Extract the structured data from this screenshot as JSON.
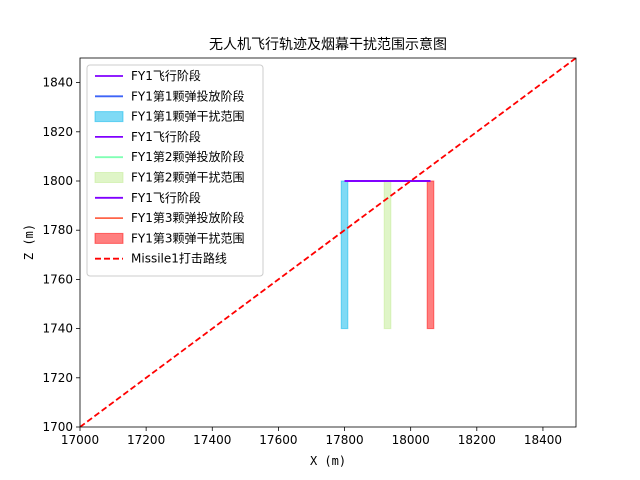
{
  "chart_data": {
    "type": "line",
    "title": "无人机飞行轨迹及烟幕干扰范围示意图",
    "xlabel": "X (m)",
    "ylabel": "Z (m)",
    "xlim": [
      17000,
      18500
    ],
    "ylim": [
      1700,
      1850
    ],
    "xticks": [
      17000,
      17200,
      17400,
      17600,
      17800,
      18000,
      18200,
      18400
    ],
    "yticks": [
      1700,
      1720,
      1740,
      1760,
      1780,
      1800,
      1820,
      1840
    ],
    "grid": false,
    "legend_placement": "upper-left",
    "series": [
      {
        "name": "FY1飞行阶段",
        "kind": "line",
        "color": "#8000ff",
        "x": [
          17800,
          18060
        ],
        "y": [
          1800,
          1800
        ]
      },
      {
        "name": "FY1第1颗弹投放阶段",
        "kind": "line",
        "color": "#3f64f7",
        "x": [
          17800,
          17800
        ],
        "y": [
          1800,
          1800
        ]
      },
      {
        "name": "FY1第1颗弹干扰范围",
        "kind": "band",
        "color": "#00b5eb",
        "x_range": [
          17790,
          17810
        ],
        "y_range": [
          1740,
          1800
        ]
      },
      {
        "name": "FY1飞行阶段",
        "kind": "line",
        "color": "#8000ff",
        "x": [
          17800,
          18060
        ],
        "y": [
          1800,
          1800
        ]
      },
      {
        "name": "FY1第2颗弹投放阶段",
        "kind": "line",
        "color": "#80ffb4",
        "x": [
          17930,
          17930
        ],
        "y": [
          1800,
          1800
        ]
      },
      {
        "name": "FY1第2颗弹干扰范围",
        "kind": "band",
        "color": "#c0eb8f",
        "x_range": [
          17920,
          17940
        ],
        "y_range": [
          1740,
          1800
        ]
      },
      {
        "name": "FY1飞行阶段",
        "kind": "line",
        "color": "#8000ff",
        "x": [
          17800,
          18060
        ],
        "y": [
          1800,
          1800
        ]
      },
      {
        "name": "FY1第3颗弹投放阶段",
        "kind": "line",
        "color": "#ff6448",
        "x": [
          18060,
          18060
        ],
        "y": [
          1800,
          1800
        ]
      },
      {
        "name": "FY1第3颗弹干扰范围",
        "kind": "band",
        "color": "#ff0000",
        "x_range": [
          18050,
          18070
        ],
        "y_range": [
          1740,
          1800
        ]
      },
      {
        "name": "Missile1打击路线",
        "kind": "dashed",
        "color": "#ff0000",
        "x": [
          17000,
          18500
        ],
        "y": [
          1700,
          1850
        ]
      }
    ]
  }
}
